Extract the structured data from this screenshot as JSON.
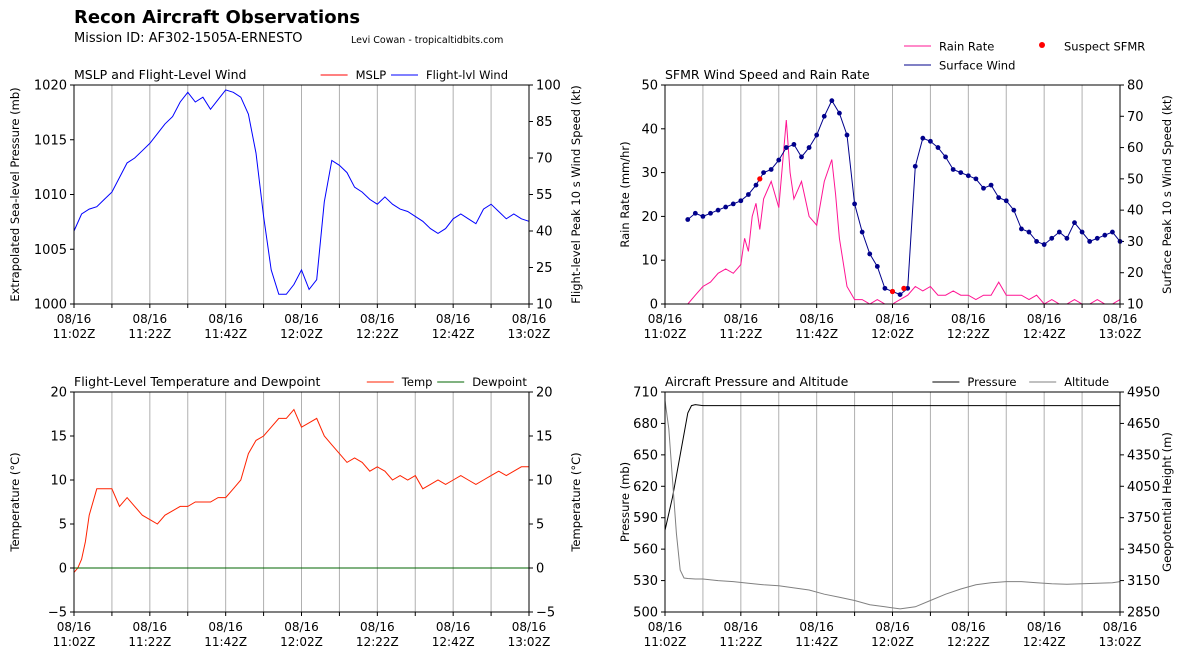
{
  "header": {
    "title": "Recon Aircraft Observations",
    "mission": "Mission ID: AF302-1505A-ERNESTO",
    "credit": "Levi Cowan - tropicaltidbits.com"
  },
  "x_ticks": [
    [
      "08/16",
      "11:02Z"
    ],
    [
      "08/16",
      "11:22Z"
    ],
    [
      "08/16",
      "11:42Z"
    ],
    [
      "08/16",
      "12:02Z"
    ],
    [
      "08/16",
      "12:22Z"
    ],
    [
      "08/16",
      "12:42Z"
    ],
    [
      "08/16",
      "13:02Z"
    ]
  ],
  "colors": {
    "mslp": "#ff0000",
    "wind": "#0000ff",
    "rain": "#ff1493",
    "sfc_wind": "#00008b",
    "suspect": "#ff0000",
    "temp": "#ff2200",
    "dew": "#006400",
    "pressure": "#000000",
    "altitude": "#808080",
    "grid": "#b0b0b0"
  },
  "chart_data": [
    {
      "type": "line",
      "title": "MSLP and Flight-Level Wind",
      "ylabel_left": "Extrapolated Sea-level Pressure (mb)",
      "ylabel_right": "Flight-level Peak 10 s Wind Speed (kt)",
      "ylim_left": [
        1000,
        1020
      ],
      "yticks_left": [
        1000,
        1005,
        1010,
        1015,
        1020
      ],
      "ylim_right": [
        10,
        100
      ],
      "yticks_right": [
        10,
        25,
        40,
        55,
        70,
        85,
        100
      ],
      "xlim_minutes": [
        0,
        120
      ],
      "legend": "top-right",
      "series": [
        {
          "name": "MSLP",
          "axis": "left",
          "color_key": "mslp",
          "x": [],
          "y": []
        },
        {
          "name": "Flight-lvl Wind",
          "axis": "right",
          "color_key": "wind",
          "x": [
            0,
            2,
            4,
            6,
            8,
            10,
            12,
            14,
            16,
            18,
            20,
            22,
            24,
            26,
            28,
            30,
            32,
            34,
            36,
            38,
            40,
            42,
            44,
            46,
            48,
            50,
            52,
            54,
            56,
            58,
            60,
            62,
            64,
            66,
            68,
            70,
            72,
            74,
            76,
            78,
            80,
            82,
            84,
            86,
            88,
            90,
            92,
            94,
            96,
            98,
            100,
            102,
            104,
            106,
            108,
            110,
            112,
            114,
            116,
            118,
            120
          ],
          "y": [
            40,
            47,
            49,
            50,
            53,
            56,
            62,
            68,
            70,
            73,
            76,
            80,
            84,
            87,
            93,
            97,
            93,
            95,
            90,
            94,
            98,
            97,
            95,
            88,
            72,
            46,
            24,
            14,
            14,
            18,
            24,
            16,
            20,
            52,
            69,
            67,
            64,
            58,
            56,
            53,
            51,
            54,
            51,
            49,
            48,
            46,
            44,
            41,
            39,
            41,
            45,
            47,
            45,
            43,
            49,
            51,
            48,
            45,
            47,
            45,
            44
          ]
        }
      ]
    },
    {
      "type": "line",
      "title": "SFMR Wind Speed and Rain Rate",
      "ylabel_left": "Rain Rate (mm/hr)",
      "ylabel_right": "Surface Peak 10 s Wind Speed (kt)",
      "ylim_left": [
        0,
        50
      ],
      "yticks_left": [
        0,
        10,
        20,
        30,
        40,
        50
      ],
      "ylim_right": [
        10,
        80
      ],
      "yticks_right": [
        10,
        20,
        30,
        40,
        50,
        60,
        70,
        80
      ],
      "xlim_minutes": [
        0,
        120
      ],
      "legend": "above-right",
      "series": [
        {
          "name": "Rain Rate",
          "axis": "left",
          "color_key": "rain",
          "x": [
            6,
            8,
            10,
            12,
            14,
            16,
            18,
            20,
            21,
            22,
            23,
            24,
            25,
            26,
            28,
            30,
            32,
            33,
            34,
            36,
            38,
            40,
            42,
            44,
            45,
            46,
            48,
            50,
            52,
            54,
            56,
            58,
            60,
            62,
            64,
            66,
            68,
            70,
            72,
            74,
            76,
            78,
            80,
            82,
            84,
            86,
            88,
            90,
            92,
            94,
            96,
            98,
            100,
            102,
            104,
            106,
            108,
            110,
            112,
            114,
            116,
            118,
            120
          ],
          "y": [
            0,
            2,
            4,
            5,
            7,
            8,
            7,
            9,
            15,
            12,
            20,
            23,
            17,
            24,
            28,
            22,
            42,
            30,
            24,
            28,
            20,
            18,
            28,
            33,
            25,
            15,
            4,
            1,
            1,
            0,
            1,
            0,
            0,
            1,
            2,
            4,
            3,
            4,
            2,
            2,
            3,
            2,
            2,
            1,
            2,
            2,
            5,
            2,
            2,
            2,
            1,
            2,
            0,
            1,
            0,
            0,
            1,
            0,
            0,
            1,
            0,
            0,
            1
          ]
        },
        {
          "name": "Surface Wind",
          "axis": "right",
          "color_key": "sfc_wind",
          "x": [
            6,
            8,
            10,
            12,
            14,
            16,
            18,
            20,
            22,
            24,
            26,
            28,
            30,
            32,
            34,
            36,
            38,
            40,
            42,
            44,
            46,
            48,
            50,
            52,
            54,
            56,
            58,
            60,
            62,
            64,
            66,
            68,
            70,
            72,
            74,
            76,
            78,
            80,
            82,
            84,
            86,
            88,
            90,
            92,
            94,
            96,
            98,
            100,
            102,
            104,
            106,
            108,
            110,
            112,
            114,
            116,
            118,
            120
          ],
          "y": [
            37,
            39,
            38,
            39,
            40,
            41,
            42,
            43,
            45,
            48,
            52,
            53,
            56,
            60,
            61,
            57,
            60,
            64,
            70,
            75,
            71,
            64,
            42,
            33,
            26,
            22,
            15,
            14,
            13,
            15,
            54,
            63,
            62,
            60,
            57,
            53,
            52,
            51,
            50,
            47,
            48,
            44,
            43,
            40,
            34,
            33,
            30,
            29,
            31,
            33,
            31,
            36,
            33,
            30,
            31,
            32,
            33,
            30
          ]
        },
        {
          "name": "Suspect SFMR",
          "axis": "right",
          "color_key": "suspect",
          "x": [
            25,
            60,
            63
          ],
          "y": [
            50,
            14,
            15
          ]
        }
      ]
    },
    {
      "type": "line",
      "title": "Flight-Level Temperature and Dewpoint",
      "ylabel_left": "Temperature ($^\\circ$C)",
      "ylabel_right": "Temperature ($^\\circ$C)",
      "ylim_left": [
        -5,
        20
      ],
      "yticks_left": [
        -5,
        0,
        5,
        10,
        15,
        20
      ],
      "ylim_right": [
        -5,
        20
      ],
      "yticks_right": [
        -5,
        0,
        5,
        10,
        15,
        20
      ],
      "xlim_minutes": [
        0,
        120
      ],
      "legend": "top-right",
      "series": [
        {
          "name": "Temp",
          "axis": "left",
          "color_key": "temp",
          "x": [
            0,
            1,
            2,
            3,
            4,
            6,
            8,
            10,
            12,
            14,
            16,
            18,
            20,
            22,
            24,
            26,
            28,
            30,
            32,
            34,
            36,
            38,
            40,
            42,
            44,
            46,
            48,
            50,
            52,
            54,
            56,
            58,
            60,
            62,
            64,
            66,
            68,
            70,
            72,
            74,
            76,
            78,
            80,
            82,
            84,
            86,
            88,
            90,
            92,
            94,
            96,
            98,
            100,
            102,
            104,
            106,
            108,
            110,
            112,
            114,
            116,
            118,
            120
          ],
          "y": [
            -0.5,
            0,
            1,
            3,
            6,
            9,
            9,
            9,
            7,
            8,
            7,
            6,
            5.5,
            5,
            6,
            6.5,
            7,
            7,
            7.5,
            7.5,
            7.5,
            8,
            8,
            9,
            10,
            13,
            14.5,
            15,
            16,
            17,
            17,
            18,
            16,
            16.5,
            17,
            15,
            14,
            13,
            12,
            12.5,
            12,
            11,
            11.5,
            11,
            10,
            10.5,
            10,
            10.5,
            9,
            9.5,
            10,
            9.5,
            10,
            10.5,
            10,
            9.5,
            10,
            10.5,
            11,
            10.5,
            11,
            11.5,
            11.5
          ]
        },
        {
          "name": "Dewpoint",
          "axis": "left",
          "color_key": "dew",
          "x": [
            0,
            120
          ],
          "y": [
            0,
            0
          ]
        }
      ]
    },
    {
      "type": "line",
      "title": "Aircraft Pressure and Altitude",
      "ylabel_left": "Pressure (mb)",
      "ylabel_right": "Geopotential Height (m)",
      "ylim_left": [
        500,
        710
      ],
      "yticks_left": [
        500,
        530,
        560,
        590,
        620,
        650,
        680,
        710
      ],
      "ylim_right": [
        2850,
        4950
      ],
      "yticks_right": [
        2850,
        3150,
        3450,
        3750,
        4050,
        4350,
        4650,
        4950
      ],
      "xlim_minutes": [
        0,
        120
      ],
      "legend": "top-right",
      "series": [
        {
          "name": "Pressure",
          "axis": "left",
          "color_key": "pressure",
          "x": [
            0,
            2,
            4,
            6,
            7,
            8,
            10,
            20,
            40,
            60,
            80,
            100,
            120
          ],
          "y": [
            578,
            610,
            650,
            690,
            697,
            698,
            697,
            697,
            697,
            697,
            697,
            697,
            697
          ]
        },
        {
          "name": "Altitude",
          "axis": "right",
          "color_key": "altitude",
          "x": [
            0,
            1,
            2,
            3,
            4,
            5,
            6,
            8,
            10,
            14,
            18,
            22,
            26,
            30,
            34,
            38,
            42,
            46,
            50,
            54,
            58,
            62,
            66,
            70,
            74,
            78,
            82,
            86,
            90,
            94,
            98,
            102,
            106,
            110,
            114,
            118,
            120
          ],
          "y": [
            4870,
            4600,
            4100,
            3600,
            3250,
            3175,
            3170,
            3165,
            3165,
            3150,
            3140,
            3125,
            3110,
            3100,
            3080,
            3060,
            3020,
            2990,
            2960,
            2920,
            2900,
            2880,
            2900,
            2960,
            3020,
            3070,
            3110,
            3130,
            3140,
            3140,
            3130,
            3120,
            3115,
            3120,
            3125,
            3130,
            3140
          ]
        }
      ]
    }
  ]
}
